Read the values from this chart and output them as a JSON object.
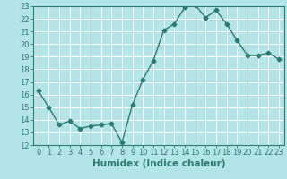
{
  "x": [
    0,
    1,
    2,
    3,
    4,
    5,
    6,
    7,
    8,
    9,
    10,
    11,
    12,
    13,
    14,
    15,
    16,
    17,
    18,
    19,
    20,
    21,
    22,
    23
  ],
  "y": [
    16.3,
    15.0,
    13.6,
    13.9,
    13.3,
    13.5,
    13.6,
    13.7,
    12.2,
    15.2,
    17.2,
    18.7,
    21.1,
    21.6,
    22.9,
    23.1,
    22.1,
    22.7,
    21.6,
    20.3,
    19.1,
    19.1,
    19.3,
    18.8
  ],
  "xlabel": "Humidex (Indice chaleur)",
  "ylim": [
    12,
    23
  ],
  "xlim_min": -0.5,
  "xlim_max": 23.5,
  "yticks": [
    12,
    13,
    14,
    15,
    16,
    17,
    18,
    19,
    20,
    21,
    22,
    23
  ],
  "xticks": [
    0,
    1,
    2,
    3,
    4,
    5,
    6,
    7,
    8,
    9,
    10,
    11,
    12,
    13,
    14,
    15,
    16,
    17,
    18,
    19,
    20,
    21,
    22,
    23
  ],
  "line_color": "#2d7a6e",
  "bg_color": "#b3e5e8",
  "grid_color": "#ffffff",
  "marker_size": 2.5,
  "line_width": 1.0,
  "tick_fontsize": 6.0,
  "xlabel_fontsize": 7.5
}
